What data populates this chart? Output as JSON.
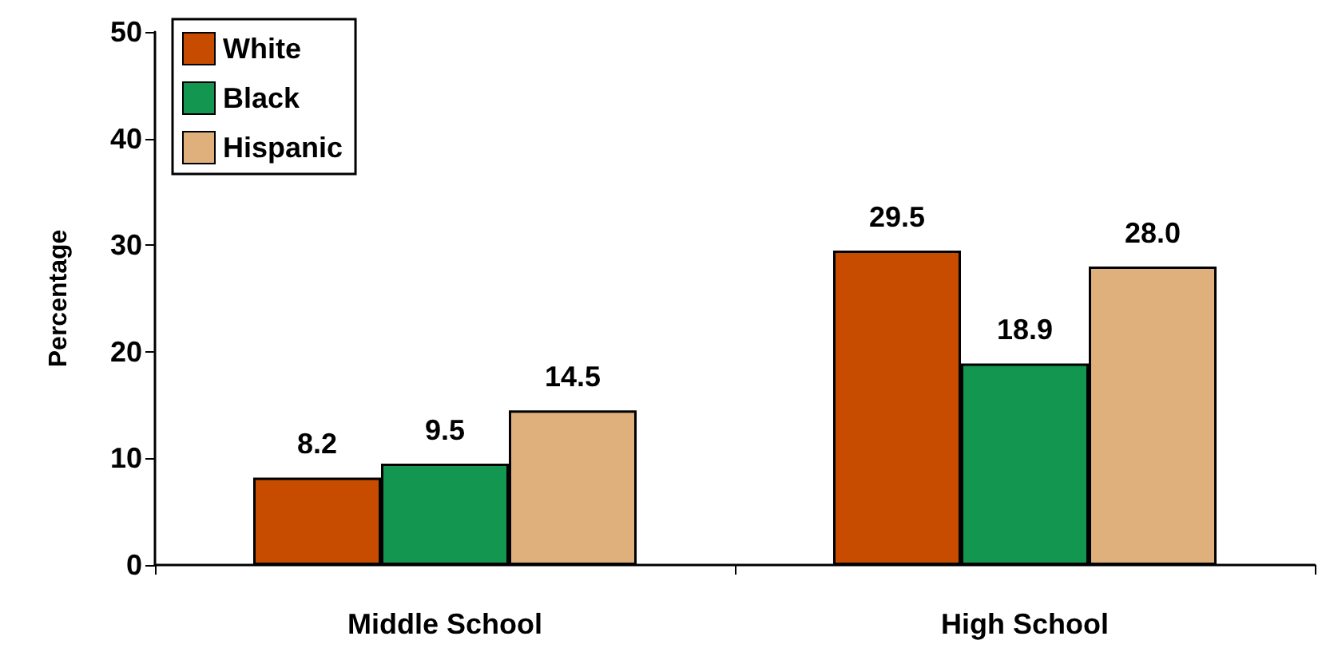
{
  "chart_data": {
    "type": "bar",
    "ylabel": "Percentage",
    "categories": [
      "Middle School",
      "High School"
    ],
    "series": [
      {
        "name": "White",
        "color": "#c84c00",
        "values": [
          8.2,
          29.5
        ],
        "value_labels": [
          "8.2",
          "29.5"
        ]
      },
      {
        "name": "Black",
        "color": "#129650",
        "values": [
          9.5,
          18.9
        ],
        "value_labels": [
          "9.5",
          "18.9"
        ]
      },
      {
        "name": "Hispanic",
        "color": "#e0b07c",
        "values": [
          14.5,
          28.0
        ],
        "value_labels": [
          "14.5",
          "28.0"
        ]
      }
    ],
    "ylim": [
      0,
      50
    ],
    "yticks": [
      0,
      10,
      20,
      30,
      40,
      50
    ],
    "grid": false,
    "legend": "top left"
  }
}
